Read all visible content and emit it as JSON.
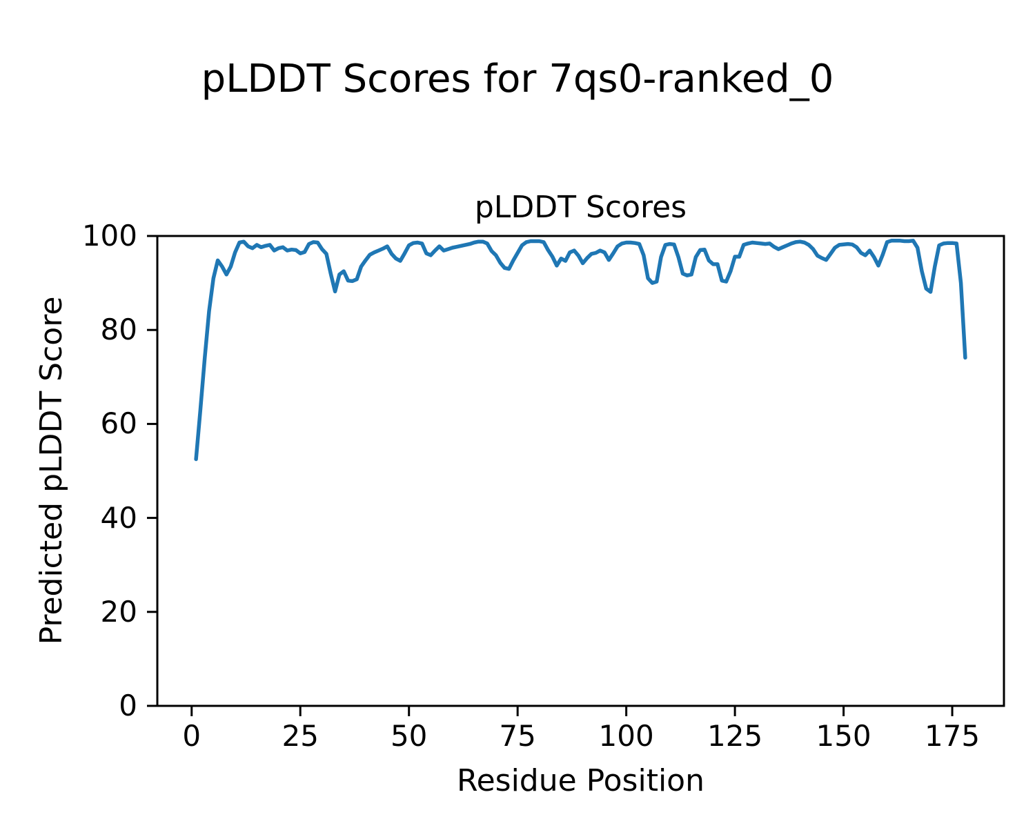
{
  "figure": {
    "title": "pLDDT Scores for 7qs0-ranked_0"
  },
  "chart_data": {
    "type": "line",
    "title": "pLDDT Scores",
    "xlabel": "Residue Position",
    "ylabel": "Predicted pLDDT Score",
    "x_ticks": [
      0,
      25,
      50,
      75,
      100,
      125,
      150,
      175
    ],
    "y_ticks": [
      0,
      20,
      40,
      60,
      80,
      100
    ],
    "xlim": [
      -7.9,
      186.9
    ],
    "ylim": [
      0,
      100
    ],
    "grid": false,
    "legend": "none",
    "line_color": "#1f77b4",
    "line_width": 5.5,
    "series": [
      {
        "name": "pLDDT",
        "x_start": 1,
        "x_step": 1,
        "n_points": 178,
        "values": [
          52.5,
          63.0,
          74.0,
          84.0,
          91.0,
          94.8,
          93.5,
          91.8,
          93.5,
          96.5,
          98.6,
          98.8,
          97.8,
          97.4,
          98.1,
          97.6,
          97.9,
          98.1,
          96.9,
          97.4,
          97.6,
          96.9,
          97.1,
          97.0,
          96.3,
          96.6,
          98.3,
          98.7,
          98.6,
          97.2,
          96.2,
          92.0,
          88.2,
          91.8,
          92.5,
          90.5,
          90.4,
          90.8,
          93.5,
          94.8,
          96.0,
          96.5,
          96.9,
          97.3,
          97.8,
          96.2,
          95.2,
          94.7,
          96.3,
          98.0,
          98.5,
          98.6,
          98.4,
          96.3,
          95.9,
          96.9,
          97.8,
          96.9,
          97.2,
          97.5,
          97.7,
          97.9,
          98.1,
          98.3,
          98.6,
          98.8,
          98.8,
          98.4,
          96.8,
          95.9,
          94.3,
          93.2,
          93.0,
          94.8,
          96.4,
          98.0,
          98.7,
          98.9,
          98.9,
          98.9,
          98.7,
          97.0,
          95.6,
          93.7,
          95.2,
          94.7,
          96.5,
          96.9,
          95.8,
          94.2,
          95.3,
          96.2,
          96.4,
          96.9,
          96.5,
          94.9,
          96.3,
          97.8,
          98.4,
          98.6,
          98.6,
          98.5,
          98.3,
          95.9,
          91.0,
          90.0,
          90.3,
          95.5,
          98.1,
          98.3,
          98.2,
          95.5,
          92.0,
          91.6,
          91.8,
          95.5,
          97.0,
          97.1,
          94.8,
          94.0,
          94.0,
          90.5,
          90.3,
          92.5,
          95.6,
          95.6,
          98.1,
          98.4,
          98.6,
          98.5,
          98.4,
          98.3,
          98.4,
          97.7,
          97.2,
          97.6,
          98.0,
          98.4,
          98.7,
          98.8,
          98.6,
          98.1,
          97.2,
          95.8,
          95.3,
          94.9,
          96.2,
          97.5,
          98.1,
          98.2,
          98.3,
          98.2,
          97.6,
          96.4,
          95.9,
          96.9,
          95.5,
          93.7,
          96.0,
          98.7,
          99.0,
          99.0,
          99.0,
          98.9,
          98.9,
          99.0,
          97.5,
          92.5,
          88.8,
          88.1,
          93.5,
          98.0,
          98.4,
          98.5,
          98.5,
          98.4,
          90.0,
          74.1
        ]
      }
    ]
  }
}
